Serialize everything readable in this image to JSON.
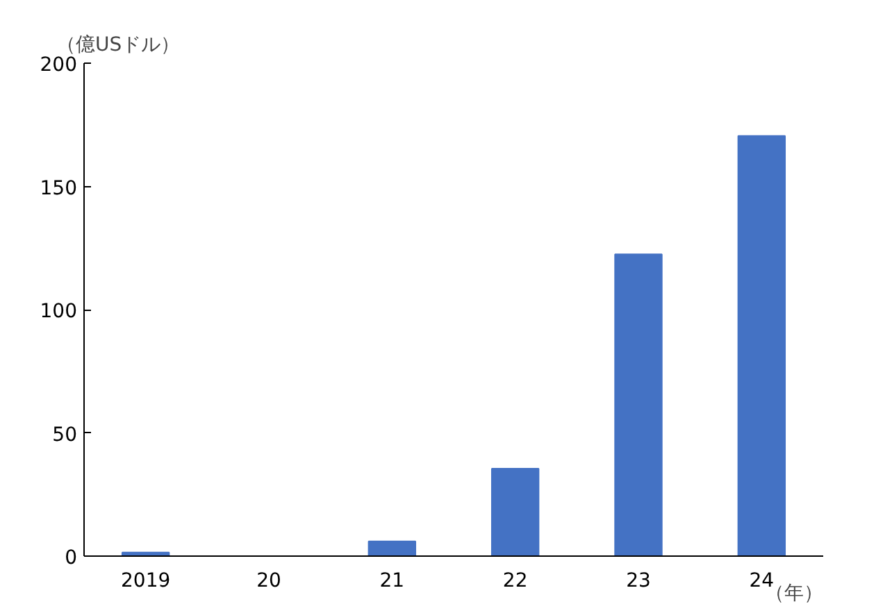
{
  "chart_data": {
    "type": "bar",
    "ylabel": "（億USドル）",
    "xlabel": "（年）",
    "categories": [
      "2019",
      "20",
      "21",
      "22",
      "23",
      "24"
    ],
    "values": [
      1.5,
      0,
      6,
      35.5,
      122.5,
      170.5
    ],
    "colors": [
      "#4472c4",
      "#4472c4",
      "#4472c4",
      "#4472c4",
      "#4472c4",
      "#4472c4"
    ],
    "ylim": [
      0,
      200
    ],
    "yticks": [
      0,
      50,
      100,
      150,
      200
    ],
    "grid": false
  }
}
